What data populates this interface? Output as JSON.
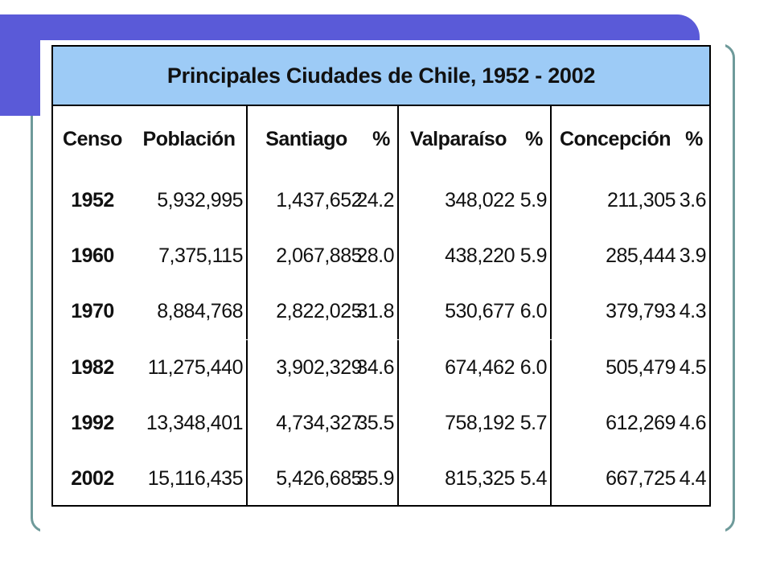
{
  "table": {
    "title": "Principales Ciudades de Chile, 1952 - 2002",
    "headers": [
      "Censo",
      "Población",
      "Santiago",
      "%",
      "Valparaíso",
      "%",
      "Concepción",
      "%"
    ],
    "rows": [
      [
        "1952",
        "5,932,995",
        "1,437,652",
        "24.2",
        "348,022",
        "5.9",
        "211,305",
        "3.6"
      ],
      [
        "1960",
        "7,375,115",
        "2,067,885",
        "28.0",
        "438,220",
        "5.9",
        "285,444",
        "3.9"
      ],
      [
        "1970",
        "8,884,768",
        "2,822,025",
        "31.8",
        "530,677",
        "6.0",
        "379,793",
        "4.3"
      ],
      [
        "1982",
        "11,275,440",
        "3,902,329",
        "34.6",
        "674,462",
        "6.0",
        "505,479",
        "4.5"
      ],
      [
        "1992",
        "13,348,401",
        "4,734,327",
        "35.5",
        "758,192",
        "5.7",
        "612,269",
        "4.6"
      ],
      [
        "2002",
        "15,116,435",
        "5,426,685",
        "35.9",
        "815,325",
        "5.4",
        "667,725",
        "4.4"
      ]
    ]
  },
  "colors": {
    "title_bg": "#9dcbf6",
    "slide_accent": "#5a5ad8",
    "frame": "#6e9a9a"
  }
}
